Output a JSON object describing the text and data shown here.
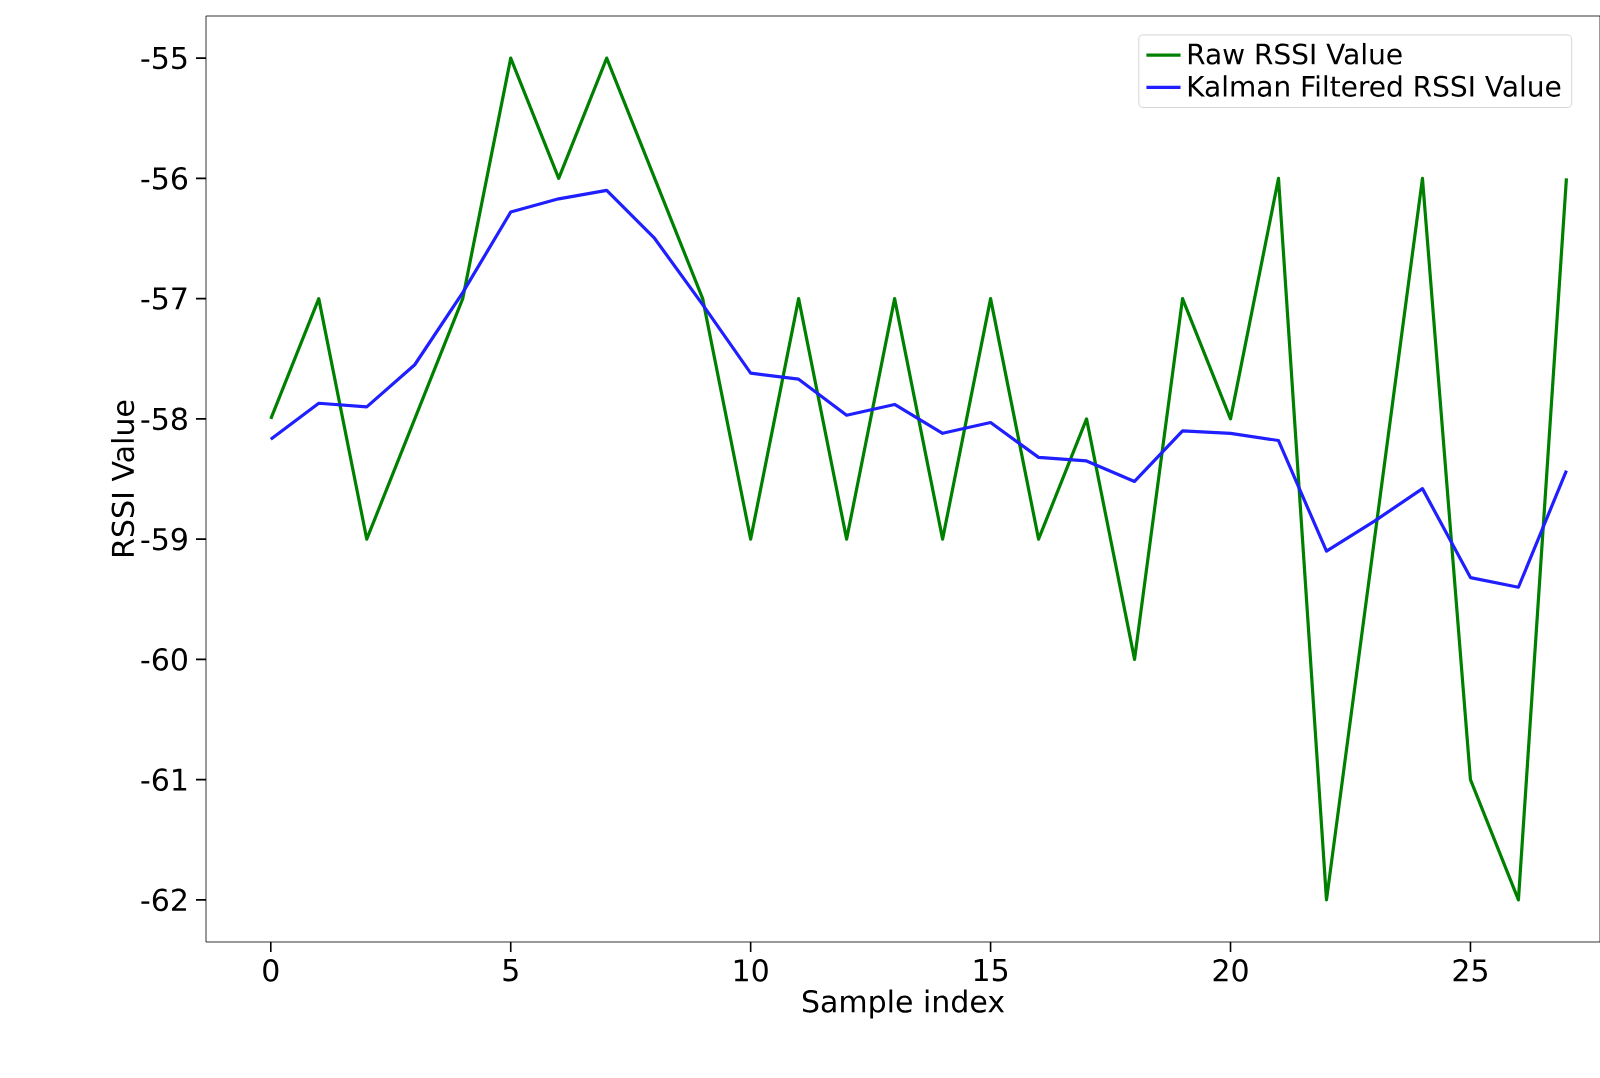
{
  "chart_data": {
    "type": "line",
    "xlabel": "Sample index",
    "ylabel": "RSSI Value",
    "x": [
      0,
      1,
      2,
      3,
      4,
      5,
      6,
      7,
      8,
      9,
      10,
      11,
      12,
      13,
      14,
      15,
      16,
      17,
      18,
      19,
      20,
      21,
      22,
      23,
      24,
      25,
      26,
      27
    ],
    "series": [
      {
        "name": "Raw RSSI Value",
        "color": "#008000",
        "values": [
          -58,
          -57,
          -59,
          -58,
          -57,
          -55,
          -56,
          -55,
          -56,
          -57,
          -59,
          -57,
          -59,
          -57,
          -59,
          -57,
          -59,
          -58,
          -60,
          -57,
          -58,
          -56,
          -62,
          -59,
          -56,
          -61,
          -62,
          -56
        ]
      },
      {
        "name": "Kalman Filtered RSSI Value",
        "color": "#1f1fff",
        "values": [
          -58.17,
          -57.87,
          -57.9,
          -57.55,
          -56.95,
          -56.28,
          -56.17,
          -56.1,
          -56.5,
          -57.05,
          -57.62,
          -57.67,
          -57.97,
          -57.88,
          -58.12,
          -58.03,
          -58.32,
          -58.35,
          -58.52,
          -58.1,
          -58.12,
          -58.18,
          -59.1,
          -58.85,
          -58.58,
          -59.32,
          -59.4,
          -58.43
        ]
      }
    ],
    "xlim": [
      -1.35,
      27.7
    ],
    "ylim": [
      -62.35,
      -54.65
    ],
    "xticks": [
      0,
      5,
      10,
      15,
      20,
      25
    ],
    "yticks": [
      -62,
      -61,
      -60,
      -59,
      -58,
      -57,
      -56,
      -55
    ],
    "legend": "top right",
    "grid": false,
    "marker": "none",
    "line_style": "solid"
  }
}
